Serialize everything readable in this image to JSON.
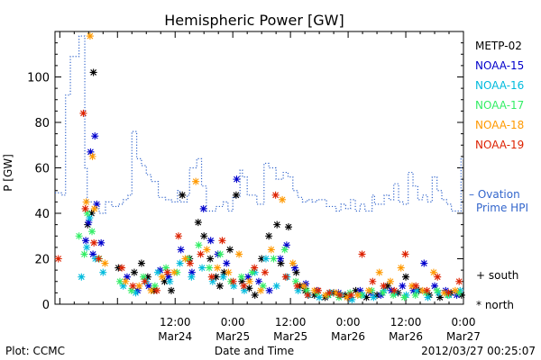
{
  "chart_data": {
    "type": "scatter",
    "title": "Hemispheric Power [GW]",
    "xlabel": "Date and Time",
    "ylabel": "P [GW]",
    "ylim": [
      0,
      120
    ],
    "yticks": [
      0,
      20,
      40,
      60,
      80,
      100
    ],
    "xlim_hours": [
      -13,
      72
    ],
    "xticks": [
      {
        "hour": 12,
        "time": "12:00",
        "date": "Mar24"
      },
      {
        "hour": 24,
        "time": "0:00",
        "date": "Mar25"
      },
      {
        "hour": 36,
        "time": "12:00",
        "date": "Mar25"
      },
      {
        "hour": 48,
        "time": "0:00",
        "date": "Mar26"
      },
      {
        "hour": 60,
        "time": "12:00",
        "date": "Mar26"
      },
      {
        "hour": 72,
        "time": "0:00",
        "date": "Mar27"
      }
    ],
    "legend_position": "right",
    "series": [
      {
        "name": "METP-02",
        "color": "#000000",
        "marker_north": "*",
        "x": [
          -6.2,
          -5.4,
          -5.0,
          0.2,
          3.5,
          5.0,
          6.3,
          7.6,
          9.8,
          11.2,
          13.5,
          15.0,
          16.8,
          18.0,
          19.3,
          20.5,
          21.3,
          22.2,
          23.4,
          24.7,
          25.9,
          27.4,
          28.6,
          30.0,
          31.5,
          33.2,
          34.0,
          35.6,
          37.2,
          38.0,
          39.1,
          41.0,
          43.2,
          45.0,
          47.4,
          49.6,
          51.8,
          54.0,
          56.2,
          58.4,
          60.0,
          62.7,
          64.9,
          67.1,
          69.4,
          71.6
        ],
        "y": [
          35,
          40,
          102,
          16,
          14,
          18,
          12,
          6,
          10,
          6,
          48,
          20,
          36,
          30,
          20,
          12,
          8,
          14,
          24,
          48,
          10,
          7,
          4,
          20,
          30,
          35,
          18,
          34,
          14,
          8,
          6,
          4,
          3,
          5,
          4,
          6,
          3,
          4,
          8,
          5,
          12,
          6,
          4,
          3,
          5,
          4
        ]
      },
      {
        "name": "NOAA-15",
        "color": "#0000cc",
        "marker_north": "*",
        "x": [
          -6.6,
          -6.0,
          -5.6,
          -5.1,
          -4.7,
          -4.3,
          -3.4,
          2.0,
          4.2,
          6.5,
          8.9,
          10.6,
          13.2,
          15.5,
          17.9,
          19.4,
          20.9,
          22.7,
          24.8,
          27.2,
          29.4,
          31.6,
          33.9,
          35.2,
          36.9,
          39.2,
          41.5,
          43.8,
          46.0,
          48.3,
          50.5,
          52.7,
          54.8,
          57.0,
          59.3,
          61.6,
          63.8,
          66.0,
          68.3,
          70.6
        ],
        "y": [
          28,
          36,
          67,
          22,
          74,
          44,
          27,
          12,
          6,
          8,
          15,
          12,
          24,
          14,
          42,
          28,
          22,
          18,
          55,
          12,
          10,
          6,
          20,
          26,
          16,
          9,
          6,
          4,
          5,
          3,
          6,
          5,
          4,
          6,
          8,
          6,
          18,
          8,
          6,
          4
        ]
      },
      {
        "name": "NOAA-16",
        "color": "#00bbdd",
        "marker_north": "*",
        "x": [
          -7.5,
          -6.4,
          -5.8,
          -4.6,
          -3.0,
          1.2,
          3.8,
          6.0,
          8.4,
          10.9,
          13.0,
          15.4,
          17.6,
          19.8,
          22.0,
          24.2,
          26.4,
          28.6,
          30.9,
          33.1,
          35.3,
          37.6,
          39.8,
          42.0,
          44.3,
          46.5,
          48.8,
          51.0,
          53.3,
          55.5,
          57.8,
          60.1,
          62.3,
          64.6,
          66.8,
          69.0,
          71.3
        ],
        "y": [
          12,
          25,
          38,
          20,
          14,
          8,
          5,
          10,
          14,
          10,
          18,
          12,
          16,
          10,
          12,
          8,
          6,
          14,
          20,
          8,
          12,
          6,
          4,
          3,
          5,
          4,
          2,
          4,
          3,
          6,
          5,
          4,
          6,
          3,
          5,
          4,
          6
        ]
      },
      {
        "name": "NOAA-17",
        "color": "#33ee66",
        "marker_north": "*",
        "x": [
          -8.0,
          -6.9,
          -6.3,
          -5.3,
          -3.8,
          0.5,
          2.9,
          5.4,
          7.8,
          10.1,
          12.4,
          14.7,
          16.9,
          19.1,
          21.4,
          23.6,
          25.8,
          28.0,
          30.3,
          32.5,
          34.8,
          37.1,
          39.4,
          41.6,
          43.9,
          46.1,
          48.4,
          50.7,
          52.9,
          55.2,
          57.4,
          59.7,
          62.0,
          64.2,
          66.5,
          68.7,
          71.0
        ],
        "y": [
          30,
          22,
          40,
          32,
          20,
          10,
          6,
          12,
          8,
          16,
          14,
          20,
          26,
          16,
          22,
          10,
          12,
          14,
          8,
          20,
          24,
          10,
          6,
          5,
          4,
          3,
          5,
          4,
          6,
          5,
          4,
          3,
          4,
          5,
          6,
          4,
          5
        ]
      },
      {
        "name": "NOAA-18",
        "color": "#ff9900",
        "marker_north": "*",
        "x": [
          -6.5,
          -5.7,
          -5.2,
          -4.8,
          -2.6,
          1.7,
          4.5,
          7.0,
          9.3,
          11.8,
          14.1,
          16.3,
          18.6,
          20.8,
          23.1,
          25.3,
          27.5,
          29.8,
          32.0,
          34.3,
          36.5,
          38.8,
          41.0,
          43.3,
          45.5,
          47.8,
          50.0,
          52.3,
          54.5,
          56.8,
          59.0,
          61.3,
          63.5,
          65.8,
          68.0,
          70.3
        ],
        "y": [
          45,
          118,
          65,
          42,
          18,
          10,
          8,
          6,
          12,
          14,
          20,
          54,
          24,
          16,
          14,
          22,
          10,
          6,
          24,
          46,
          18,
          8,
          6,
          4,
          5,
          3,
          4,
          6,
          14,
          10,
          16,
          8,
          6,
          14,
          5,
          6
        ]
      },
      {
        "name": "NOAA-19",
        "color": "#dd2200",
        "marker_north": "*",
        "x": [
          -12.3,
          -7.1,
          -6.7,
          -4.9,
          -3.9,
          0.9,
          3.2,
          5.7,
          8.2,
          10.4,
          12.7,
          15.1,
          17.3,
          19.6,
          21.8,
          24.1,
          26.3,
          28.5,
          30.7,
          32.9,
          35.0,
          37.4,
          39.6,
          41.8,
          44.1,
          46.3,
          48.6,
          50.9,
          53.1,
          55.4,
          57.6,
          59.9,
          62.1,
          64.4,
          66.6,
          68.9,
          71.1
        ],
        "y": [
          20,
          84,
          42,
          27,
          20,
          16,
          8,
          10,
          6,
          14,
          30,
          18,
          22,
          12,
          28,
          10,
          8,
          16,
          14,
          48,
          12,
          8,
          4,
          6,
          5,
          4,
          4,
          22,
          10,
          8,
          6,
          22,
          8,
          6,
          12,
          5,
          10
        ]
      }
    ],
    "ovation": {
      "name": "Ovation Prime HPI",
      "label_line1": "– Ovation",
      "label_line2": "Prime HPI",
      "color": "#3366cc",
      "steps": [
        [
          -13.0,
          49
        ],
        [
          -11.5,
          48
        ],
        [
          -10.8,
          92
        ],
        [
          -9.8,
          109
        ],
        [
          -8.0,
          118
        ],
        [
          -6.8,
          60
        ],
        [
          -6.3,
          45
        ],
        [
          -4.8,
          44
        ],
        [
          -4.3,
          42
        ],
        [
          -3.8,
          40
        ],
        [
          -2.5,
          45
        ],
        [
          -1.2,
          43
        ],
        [
          0.2,
          44
        ],
        [
          1.2,
          46
        ],
        [
          2.2,
          48
        ],
        [
          3.0,
          76
        ],
        [
          4.0,
          64
        ],
        [
          5.0,
          61
        ],
        [
          6.0,
          57
        ],
        [
          7.0,
          54
        ],
        [
          8.5,
          47
        ],
        [
          10.0,
          46
        ],
        [
          11.2,
          45
        ],
        [
          12.5,
          50
        ],
        [
          13.0,
          45
        ],
        [
          14.5,
          48
        ],
        [
          15.0,
          60
        ],
        [
          16.5,
          64
        ],
        [
          17.5,
          52
        ],
        [
          18.5,
          41
        ],
        [
          20.5,
          43
        ],
        [
          22.0,
          45
        ],
        [
          23.0,
          41
        ],
        [
          24.0,
          47
        ],
        [
          25.5,
          59
        ],
        [
          26.0,
          56
        ],
        [
          27.0,
          48
        ],
        [
          29.0,
          44
        ],
        [
          30.5,
          62
        ],
        [
          31.5,
          60
        ],
        [
          33.0,
          55
        ],
        [
          34.5,
          58
        ],
        [
          35.5,
          56
        ],
        [
          36.5,
          50
        ],
        [
          37.5,
          47
        ],
        [
          38.5,
          45
        ],
        [
          39.5,
          46
        ],
        [
          40.5,
          45
        ],
        [
          41.5,
          46
        ],
        [
          43.5,
          43
        ],
        [
          45.5,
          41
        ],
        [
          46.5,
          44
        ],
        [
          47.5,
          42
        ],
        [
          48.5,
          46
        ],
        [
          49.5,
          41
        ],
        [
          50.5,
          44
        ],
        [
          51.5,
          41
        ],
        [
          53.0,
          48
        ],
        [
          53.5,
          44
        ],
        [
          55.5,
          48
        ],
        [
          56.5,
          46
        ],
        [
          57.5,
          53
        ],
        [
          58.5,
          45
        ],
        [
          59.5,
          44
        ],
        [
          60.5,
          58
        ],
        [
          61.5,
          52
        ],
        [
          62.5,
          46
        ],
        [
          63.5,
          48
        ],
        [
          64.5,
          45
        ],
        [
          65.5,
          56
        ],
        [
          66.5,
          50
        ],
        [
          67.5,
          46
        ],
        [
          68.5,
          44
        ],
        [
          69.5,
          41
        ],
        [
          70.5,
          41
        ],
        [
          71.5,
          64
        ],
        [
          72.0,
          64
        ]
      ]
    }
  },
  "legend": {
    "south_label": "+ south",
    "north_label": "* north"
  },
  "footer": {
    "plot_source": "Plot: CCMC",
    "timestamp": "2012/03/27 00:25:07"
  }
}
